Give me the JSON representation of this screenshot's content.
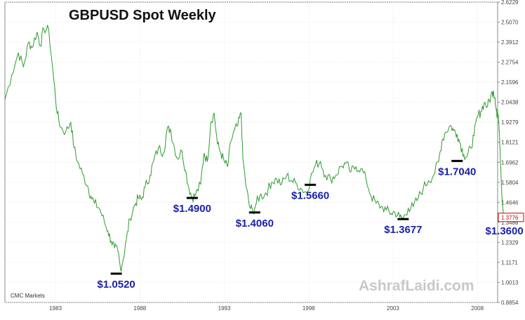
{
  "chart_data": {
    "type": "line",
    "title": "GBPUSD Spot Weekly",
    "source_label": "CMC Markets",
    "watermark": "AshrafLaidi.com",
    "series_color": "#2e9a2e",
    "annotation_color": "#1a22a8",
    "x_range": [
      1980.0,
      2009.2
    ],
    "ylim": [
      0.8854,
      2.6229
    ],
    "y_ticks": [
      "2.6229",
      "2.5070",
      "2.3912",
      "2.2754",
      "2.1596",
      "2.0438",
      "1.9279",
      "1.8121",
      "1.6962",
      "1.5804",
      "1.4646",
      "1.3488",
      "1.2329",
      "1.1171",
      "1.0013",
      "0.8854"
    ],
    "x_ticks": [
      {
        "x": 1983.0,
        "label": "1983"
      },
      {
        "x": 1988.0,
        "label": "1988"
      },
      {
        "x": 1993.0,
        "label": "1993"
      },
      {
        "x": 1998.0,
        "label": "1998"
      },
      {
        "x": 2003.0,
        "label": "2003"
      },
      {
        "x": 2008.0,
        "label": "2008"
      }
    ],
    "last_value": {
      "x": 2008.85,
      "y": 1.3776,
      "label": "1.3776"
    },
    "points": [
      [
        1980.0,
        2.06
      ],
      [
        1980.4,
        2.2
      ],
      [
        1980.8,
        2.33
      ],
      [
        1981.1,
        2.25
      ],
      [
        1981.4,
        2.39
      ],
      [
        1981.6,
        2.36
      ],
      [
        1981.9,
        2.45
      ],
      [
        1982.1,
        2.37
      ],
      [
        1982.3,
        2.47
      ],
      [
        1982.6,
        2.46
      ],
      [
        1982.9,
        2.17
      ],
      [
        1983.1,
        1.98
      ],
      [
        1983.3,
        1.9
      ],
      [
        1983.6,
        1.87
      ],
      [
        1983.9,
        1.93
      ],
      [
        1984.1,
        1.78
      ],
      [
        1984.3,
        1.7
      ],
      [
        1984.6,
        1.63
      ],
      [
        1984.9,
        1.56
      ],
      [
        1985.1,
        1.5
      ],
      [
        1985.3,
        1.46
      ],
      [
        1985.6,
        1.43
      ],
      [
        1985.9,
        1.35
      ],
      [
        1986.1,
        1.3
      ],
      [
        1986.3,
        1.24
      ],
      [
        1986.5,
        1.2
      ],
      [
        1986.7,
        1.18
      ],
      [
        1986.85,
        1.08
      ],
      [
        1987.0,
        1.13
      ],
      [
        1987.2,
        1.25
      ],
      [
        1987.4,
        1.37
      ],
      [
        1987.7,
        1.45
      ],
      [
        1987.9,
        1.49
      ],
      [
        1988.1,
        1.48
      ],
      [
        1988.3,
        1.55
      ],
      [
        1988.6,
        1.62
      ],
      [
        1988.8,
        1.7
      ],
      [
        1989.1,
        1.78
      ],
      [
        1989.4,
        1.75
      ],
      [
        1989.6,
        1.88
      ],
      [
        1989.8,
        1.89
      ],
      [
        1990.0,
        1.8
      ],
      [
        1990.2,
        1.72
      ],
      [
        1990.5,
        1.76
      ],
      [
        1990.7,
        1.65
      ],
      [
        1990.9,
        1.55
      ],
      [
        1991.1,
        1.49
      ],
      [
        1991.3,
        1.51
      ],
      [
        1991.6,
        1.57
      ],
      [
        1991.8,
        1.75
      ],
      [
        1992.0,
        1.7
      ],
      [
        1992.2,
        1.93
      ],
      [
        1992.4,
        1.98
      ],
      [
        1992.6,
        1.8
      ],
      [
        1992.8,
        1.75
      ],
      [
        1993.0,
        1.7
      ],
      [
        1993.2,
        1.67
      ],
      [
        1993.4,
        1.82
      ],
      [
        1993.6,
        1.88
      ],
      [
        1993.8,
        1.91
      ],
      [
        1994.0,
        1.98
      ],
      [
        1994.1,
        1.72
      ],
      [
        1994.3,
        1.55
      ],
      [
        1994.5,
        1.44
      ],
      [
        1994.7,
        1.41
      ],
      [
        1994.9,
        1.46
      ],
      [
        1995.1,
        1.5
      ],
      [
        1995.4,
        1.51
      ],
      [
        1995.6,
        1.54
      ],
      [
        1995.8,
        1.58
      ],
      [
        1996.1,
        1.6
      ],
      [
        1996.4,
        1.57
      ],
      [
        1996.7,
        1.62
      ],
      [
        1997.0,
        1.59
      ],
      [
        1997.3,
        1.57
      ],
      [
        1997.6,
        1.54
      ],
      [
        1997.9,
        1.52
      ],
      [
        1998.1,
        1.6
      ],
      [
        1998.4,
        1.68
      ],
      [
        1998.7,
        1.7
      ],
      [
        1999.0,
        1.62
      ],
      [
        1999.3,
        1.6
      ],
      [
        1999.6,
        1.62
      ],
      [
        1999.9,
        1.67
      ],
      [
        2000.2,
        1.69
      ],
      [
        2000.5,
        1.64
      ],
      [
        2000.8,
        1.67
      ],
      [
        2001.1,
        1.66
      ],
      [
        2001.4,
        1.6
      ],
      [
        2001.7,
        1.5
      ],
      [
        2002.0,
        1.46
      ],
      [
        2002.3,
        1.44
      ],
      [
        2002.6,
        1.42
      ],
      [
        2002.9,
        1.4
      ],
      [
        2003.1,
        1.41
      ],
      [
        2003.4,
        1.38
      ],
      [
        2003.6,
        1.37
      ],
      [
        2003.9,
        1.43
      ],
      [
        2004.2,
        1.44
      ],
      [
        2004.5,
        1.49
      ],
      [
        2004.8,
        1.55
      ],
      [
        2005.1,
        1.59
      ],
      [
        2005.4,
        1.62
      ],
      [
        2005.7,
        1.7
      ],
      [
        2005.9,
        1.82
      ],
      [
        2006.1,
        1.87
      ],
      [
        2006.4,
        1.91
      ],
      [
        2006.6,
        1.88
      ],
      [
        2006.8,
        1.86
      ],
      [
        2007.0,
        1.8
      ],
      [
        2007.2,
        1.74
      ],
      [
        2007.4,
        1.73
      ],
      [
        2007.6,
        1.78
      ],
      [
        2007.8,
        1.85
      ],
      [
        2008.0,
        1.96
      ],
      [
        2008.2,
        1.99
      ],
      [
        2008.4,
        2.04
      ],
      [
        2008.6,
        2.02
      ],
      [
        2008.8,
        2.08
      ],
      [
        2008.95,
        2.11
      ],
      [
        2009.05,
        2.07
      ],
      [
        2009.1,
        2.01
      ],
      [
        2009.15,
        1.97
      ],
      [
        2009.2,
        2.0
      ],
      [
        2009.25,
        1.97
      ],
      [
        2009.3,
        1.88
      ],
      [
        2009.35,
        1.74
      ],
      [
        2009.4,
        1.62
      ],
      [
        2009.45,
        1.5
      ],
      [
        2009.5,
        1.45
      ],
      [
        2009.55,
        1.38
      ]
    ],
    "annotations": [
      {
        "label": "$1.0520",
        "x": 1986.6,
        "y": 1.052
      },
      {
        "label": "$1.4900",
        "x": 1991.1,
        "y": 1.49
      },
      {
        "label": "$1.4060",
        "x": 1994.8,
        "y": 1.406
      },
      {
        "label": "$1.5660",
        "x": 1998.1,
        "y": 1.566
      },
      {
        "label": "$1.3677",
        "x": 2003.6,
        "y": 1.3677
      },
      {
        "label": "$1.7040",
        "x": 2006.8,
        "y": 1.704
      },
      {
        "label": "$1.3600",
        "x": 2009.6,
        "y": 1.36
      }
    ]
  }
}
